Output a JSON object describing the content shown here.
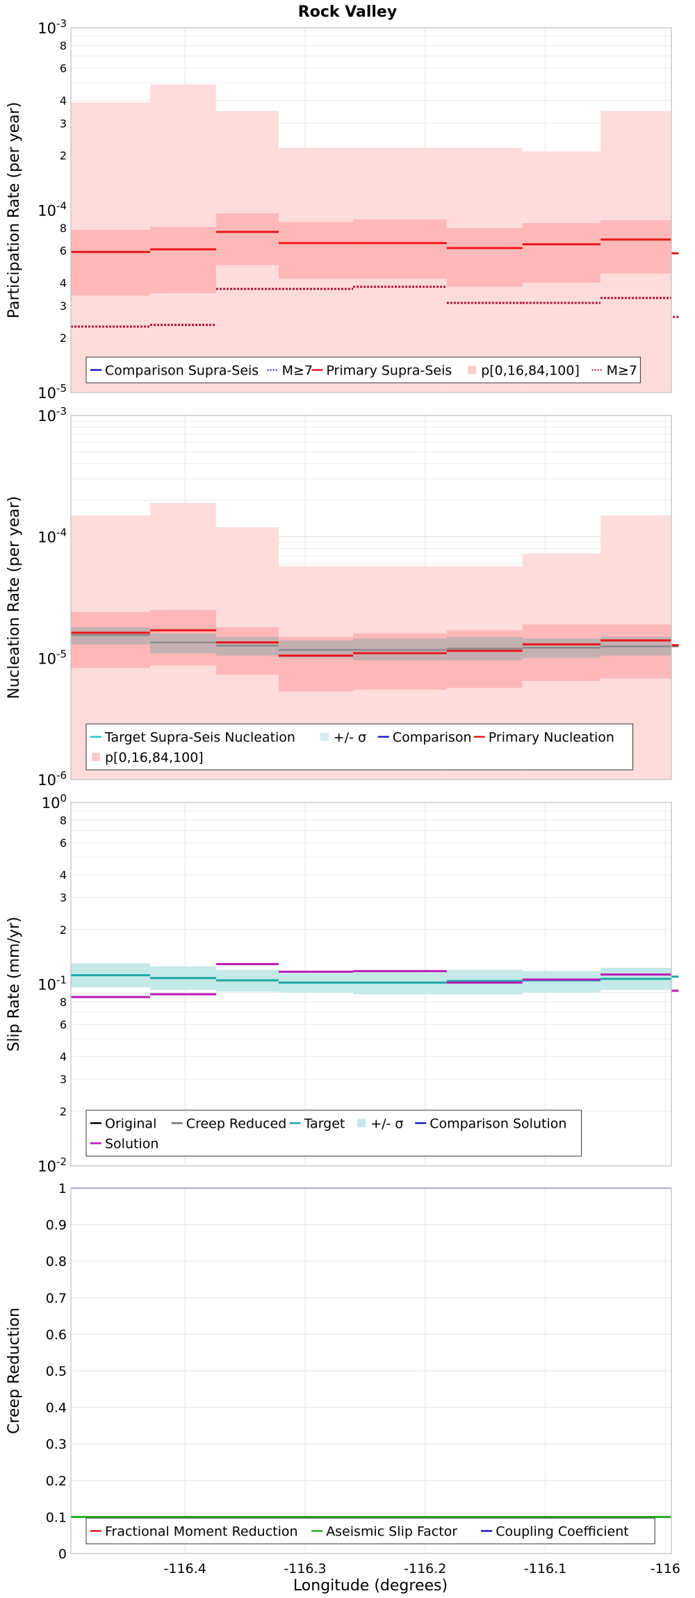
{
  "chart_data": {
    "title": "Rock Valley",
    "xlabel": "Longitude (degrees)",
    "xlim": [
      -116.495,
      -115.995
    ],
    "xticks": [
      -116.4,
      -116.3,
      -116.2,
      -116.1,
      -116.0
    ],
    "xtick_labels": [
      "-116.4",
      "-116.3",
      "-116.2",
      "-116.1",
      "-116"
    ],
    "bins": [
      [
        -116.495,
        -116.429
      ],
      [
        -116.429,
        -116.374
      ],
      [
        -116.374,
        -116.322
      ],
      [
        -116.322,
        -116.26
      ],
      [
        -116.26,
        -116.182
      ],
      [
        -116.182,
        -116.119
      ],
      [
        -116.119,
        -116.054
      ],
      [
        -116.054,
        -115.989
      ],
      [
        -115.989,
        -115.995
      ]
    ],
    "panels": [
      {
        "type": "step",
        "name": "participation",
        "ylabel": "Participation Rate (per year)",
        "yscale": "log",
        "ylim": [
          1e-05,
          0.001
        ],
        "major_ticks": [
          {
            "v": 1e-05,
            "b": "10",
            "e": "-5"
          },
          {
            "v": 0.0001,
            "b": "10",
            "e": "-4"
          },
          {
            "v": 0.001,
            "b": "10",
            "e": "-3"
          }
        ],
        "minor_ticks": [
          2e-05,
          3e-05,
          4e-05,
          6e-05,
          8e-05,
          0.0002,
          0.0003,
          0.0004,
          0.0006,
          0.0008
        ],
        "minor_labels": [
          "2",
          "3",
          "4",
          "6",
          "8",
          "2",
          "3",
          "4",
          "6",
          "8"
        ],
        "bands": [
          {
            "color": "#ffdcdc",
            "low": [
              1e-05,
              1e-05,
              1e-05,
              1e-05,
              1e-05,
              1e-05,
              1e-05,
              1e-05,
              1e-05
            ],
            "high": [
              0.00039,
              0.00049,
              0.00035,
              0.00022,
              0.00022,
              0.00022,
              0.00021,
              0.00035,
              0.00027
            ]
          },
          {
            "color": "#ffb8b8",
            "low": [
              3.4e-05,
              3.5e-05,
              5e-05,
              4.2e-05,
              4.2e-05,
              3.8e-05,
              4e-05,
              4.5e-05,
              3.5e-05
            ],
            "high": [
              7.8e-05,
              8.1e-05,
              9.6e-05,
              8.6e-05,
              8.9e-05,
              8e-05,
              8.5e-05,
              8.8e-05,
              7.6e-05
            ]
          }
        ],
        "lines": [
          {
            "name": "Primary Supra-Seis",
            "color": "#e8181c",
            "width": 3,
            "dash": "",
            "values": [
              5.9e-05,
              6.1e-05,
              7.6e-05,
              6.6e-05,
              6.6e-05,
              6.2e-05,
              6.5e-05,
              6.9e-05,
              5.8e-05
            ]
          },
          {
            "name": "M≥7",
            "color": "#b0103c",
            "width": 3,
            "dash": "3,2",
            "values": [
              2.3e-05,
              2.35e-05,
              3.7e-05,
              3.7e-05,
              3.8e-05,
              3.1e-05,
              3.1e-05,
              3.3e-05,
              2.6e-05
            ]
          }
        ],
        "legend": [
          {
            "label": "Comparison Supra-Seis",
            "color": "#1a1ac8",
            "kind": "line"
          },
          {
            "label": "M≥7",
            "color": "#1a1ac8",
            "kind": "dot"
          },
          {
            "label": "Primary Supra-Seis",
            "color": "#e8181c",
            "kind": "line"
          },
          {
            "label": "p[0,16,84,100]",
            "color": "#ffcccc",
            "kind": "patch"
          },
          {
            "label": "M≥7",
            "color": "#c01040",
            "kind": "dot"
          }
        ]
      },
      {
        "type": "step",
        "name": "nucleation",
        "ylabel": "Nucleation Rate (per year)",
        "yscale": "log",
        "ylim": [
          1e-06,
          0.001
        ],
        "major_ticks": [
          {
            "v": 1e-06,
            "b": "10",
            "e": "-6"
          },
          {
            "v": 1e-05,
            "b": "10",
            "e": "-5"
          },
          {
            "v": 0.0001,
            "b": "10",
            "e": "-4"
          },
          {
            "v": 0.001,
            "b": "10",
            "e": "-3"
          }
        ],
        "minor_ticks": [],
        "minor_labels": [],
        "bands": [
          {
            "color": "#ffdcdc",
            "low": [
              1e-06,
              1e-06,
              1e-06,
              1e-06,
              1e-06,
              1e-06,
              1e-06,
              1e-06,
              1e-06
            ],
            "high": [
              0.00015,
              0.00019,
              0.00012,
              5.7e-05,
              5.7e-05,
              5.7e-05,
              7.3e-05,
              0.00015,
              0.00013
            ]
          },
          {
            "color": "#ffb8b8",
            "low": [
              8.3e-06,
              8.7e-06,
              7.3e-06,
              5.3e-06,
              5.5e-06,
              5.7e-06,
              6.5e-06,
              6.8e-06,
              6e-06
            ],
            "high": [
              2.4e-05,
              2.5e-05,
              1.8e-05,
              1.5e-05,
              1.6e-05,
              1.7e-05,
              1.9e-05,
              1.9e-05,
              1.7e-05
            ]
          },
          {
            "color": "#c4b0b0",
            "low": [
              1.3e-05,
              1.1e-05,
              1.05e-05,
              1e-05,
              9.6e-06,
              9.6e-06,
              1e-05,
              1.05e-05,
              1.05e-05
            ],
            "high": [
              1.8e-05,
              1.6e-05,
              1.5e-05,
              1.4e-05,
              1.45e-05,
              1.5e-05,
              1.45e-05,
              1.5e-05,
              1.55e-05
            ]
          }
        ],
        "lines": [
          {
            "name": "Target Supra-Seis Nucleation",
            "color": "#8a8a8a",
            "width": 2.5,
            "dash": "",
            "values": [
              1.55e-05,
              1.35e-05,
              1.27e-05,
              1.17e-05,
              1.17e-05,
              1.2e-05,
              1.22e-05,
              1.25e-05,
              1.25e-05
            ]
          },
          {
            "name": "Primary Nucleation",
            "color": "#e8181c",
            "width": 3,
            "dash": "",
            "values": [
              1.62e-05,
              1.7e-05,
              1.35e-05,
              1.05e-05,
              1.1e-05,
              1.15e-05,
              1.3e-05,
              1.4e-05,
              1.28e-05
            ]
          }
        ],
        "legend": [
          {
            "label": "Target Supra-Seis Nucleation",
            "color": "#22c8c8",
            "kind": "line"
          },
          {
            "label": "+/- σ",
            "color": "#d8ecec",
            "kind": "patch"
          },
          {
            "label": "Comparison",
            "color": "#1a1ac8",
            "kind": "line"
          },
          {
            "label": "Primary Nucleation",
            "color": "#e8181c",
            "kind": "line"
          },
          {
            "label": "p[0,16,84,100]",
            "color": "#ffcccc",
            "kind": "patch"
          }
        ]
      },
      {
        "type": "step",
        "name": "slip",
        "ylabel": "Slip Rate (mm/yr)",
        "yscale": "log",
        "ylim": [
          0.01,
          1
        ],
        "major_ticks": [
          {
            "v": 0.01,
            "b": "10",
            "e": "-2"
          },
          {
            "v": 0.1,
            "b": "10",
            "e": "-1"
          },
          {
            "v": 1,
            "b": "10",
            "e": "0"
          }
        ],
        "minor_ticks": [
          0.02,
          0.03,
          0.04,
          0.06,
          0.08,
          0.2,
          0.3,
          0.4,
          0.6,
          0.8
        ],
        "minor_labels": [
          "2",
          "3",
          "4",
          "6",
          "8",
          "2",
          "3",
          "4",
          "6",
          "8"
        ],
        "bands": [
          {
            "color": "#c4e8e8",
            "low": [
              0.096,
              0.093,
              0.091,
              0.09,
              0.088,
              0.088,
              0.09,
              0.093,
              0.096
            ],
            "high": [
              0.13,
              0.125,
              0.12,
              0.115,
              0.116,
              0.12,
              0.118,
              0.123,
              0.128
            ]
          }
        ],
        "lines": [
          {
            "name": "Target",
            "color": "#1aa8a8",
            "width": 3,
            "dash": "",
            "values": [
              0.112,
              0.108,
              0.105,
              0.102,
              0.102,
              0.104,
              0.105,
              0.107,
              0.11
            ]
          },
          {
            "name": "Solution",
            "color": "#b818b8",
            "width": 3,
            "dash": "",
            "values": [
              0.085,
              0.088,
              0.129,
              0.117,
              0.118,
              0.102,
              0.106,
              0.113,
              0.092
            ]
          }
        ],
        "legend": [
          {
            "label": "Original",
            "color": "#000000",
            "kind": "line"
          },
          {
            "label": "Creep Reduced",
            "color": "#707070",
            "kind": "line"
          },
          {
            "label": "Target",
            "color": "#1aa8a8",
            "kind": "line"
          },
          {
            "label": "+/- σ",
            "color": "#c4e8e8",
            "kind": "patch"
          },
          {
            "label": "Comparison Solution",
            "color": "#1a1ac8",
            "kind": "line"
          },
          {
            "label": "Solution",
            "color": "#b818b8",
            "kind": "line"
          }
        ]
      },
      {
        "type": "line",
        "name": "creep",
        "ylabel": "Creep Reduction",
        "yscale": "linear",
        "ylim": [
          0,
          1
        ],
        "linear_ticks": [
          0,
          0.1,
          0.2,
          0.3,
          0.4,
          0.5,
          0.6,
          0.7,
          0.8,
          0.9,
          1
        ],
        "linear_tick_labels": [
          "0",
          "0.1",
          "0.2",
          "0.3",
          "0.4",
          "0.5",
          "0.6",
          "0.7",
          "0.8",
          "0.9",
          "1"
        ],
        "bands": [],
        "hlines": [
          {
            "name": "Coupling Coefficient",
            "color": "#1a1ac8",
            "width": 1.5,
            "value": 1.0
          },
          {
            "name": "Aseismic Slip Factor",
            "color": "#20b020",
            "width": 3,
            "value": 0.1
          }
        ],
        "legend": [
          {
            "label": "Fractional Moment Reduction",
            "color": "#e8181c",
            "kind": "line"
          },
          {
            "label": "Aseismic Slip Factor",
            "color": "#20b020",
            "kind": "line"
          },
          {
            "label": "Coupling Coefficient",
            "color": "#1a1ac8",
            "kind": "line"
          }
        ]
      }
    ]
  }
}
